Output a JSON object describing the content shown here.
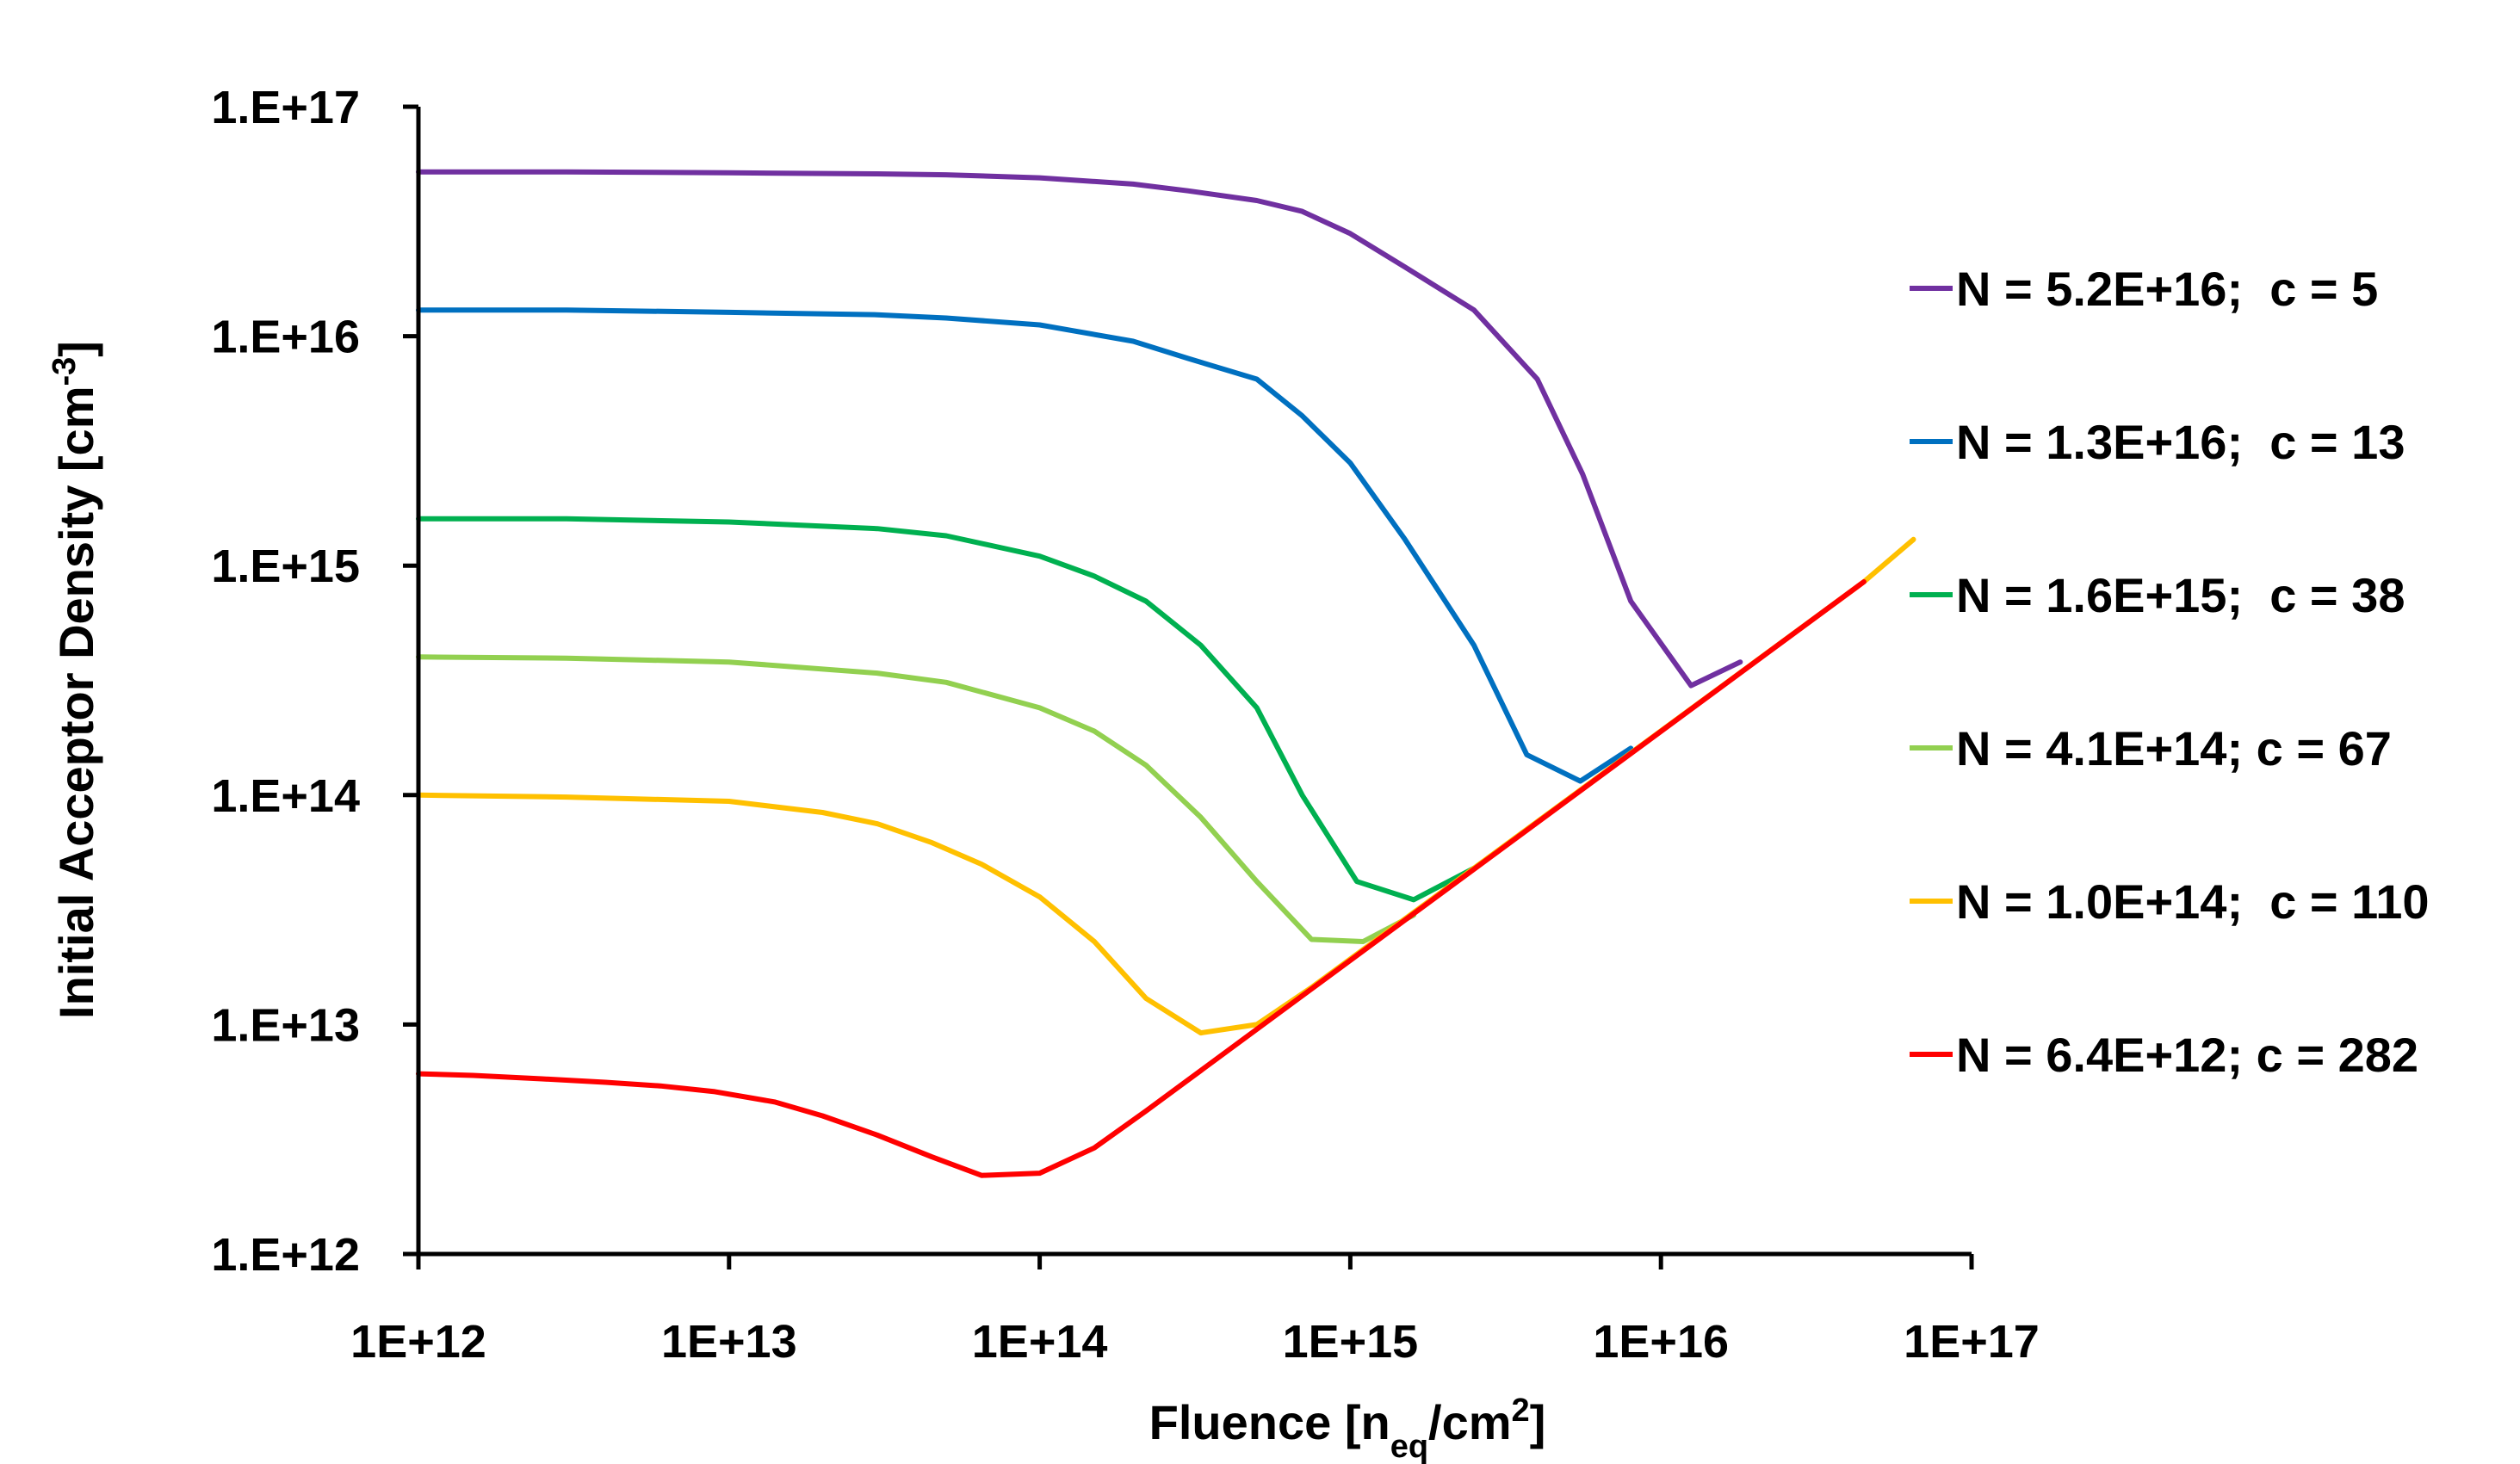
{
  "chart_data": {
    "type": "line",
    "xscale": "log",
    "yscale": "log",
    "xlim": [
      1000000000000.0,
      1e+17
    ],
    "ylim": [
      1000000000000.0,
      1e+17
    ],
    "xlabel": {
      "prefix": "Fluence [n",
      "sub": "eq",
      "mid": "/cm",
      "sup": "2",
      "suffix": "]"
    },
    "ylabel": {
      "prefix": "Initial Acceptor Density [cm",
      "sup": "-3",
      "suffix": "]"
    },
    "xticks": [
      "1E+12",
      "1E+13",
      "1E+14",
      "1E+15",
      "1E+16",
      "1E+17"
    ],
    "yticks": [
      "1.E+12",
      "1.E+13",
      "1.E+14",
      "1.E+15",
      "1.E+16",
      "1.E+17"
    ],
    "grid": false,
    "legend_position": "right",
    "series": [
      {
        "name": "N = 5.2E+16;  c = 5",
        "color": "#7030A0",
        "x": [
          1000000000000.0,
          3000000000000.0,
          10000000000000.0,
          30000000000000.0,
          50000000000000.0,
          100000000000000.0,
          200000000000000.0,
          300000000000000.0,
          500000000000000.0,
          700000000000000.0,
          1000000000000000.0,
          1500000000000000.0,
          2500000000000000.0,
          4000000000000000.0,
          5600000000000000.0,
          8000000000000000.0,
          1.25e+16,
          1.8e+16
        ],
        "y": [
          5.2e+16,
          5.2e+16,
          5.15e+16,
          5.1e+16,
          5.05e+16,
          4.9e+16,
          4.6e+16,
          4.3e+16,
          3.9e+16,
          3.5e+16,
          2.8e+16,
          2e+16,
          1.3e+16,
          6500000000000000.0,
          2500000000000000.0,
          700000000000000.0,
          300000000000000.0,
          380000000000000.0
        ]
      },
      {
        "name": "N = 1.3E+16;  c = 13",
        "color": "#0070C0",
        "x": [
          1000000000000.0,
          3000000000000.0,
          10000000000000.0,
          30000000000000.0,
          50000000000000.0,
          100000000000000.0,
          200000000000000.0,
          300000000000000.0,
          500000000000000.0,
          700000000000000.0,
          1000000000000000.0,
          1500000000000000.0,
          2500000000000000.0,
          3700000000000000.0,
          5500000000000000.0,
          8000000000000000.0
        ],
        "y": [
          1.3e+16,
          1.3e+16,
          1.27e+16,
          1.24e+16,
          1.2e+16,
          1.12e+16,
          9500000000000000.0,
          8000000000000000.0,
          6500000000000000.0,
          4500000000000000.0,
          2800000000000000.0,
          1300000000000000.0,
          450000000000000.0,
          150000000000000.0,
          115000000000000.0,
          160000000000000.0
        ]
      },
      {
        "name": "N = 1.6E+15;  c = 38",
        "color": "#00B050",
        "x": [
          1000000000000.0,
          3000000000000.0,
          10000000000000.0,
          30000000000000.0,
          50000000000000.0,
          100000000000000.0,
          150000000000000.0,
          220000000000000.0,
          330000000000000.0,
          500000000000000.0,
          700000000000000.0,
          1050000000000000.0,
          1600000000000000.0,
          2500000000000000.0
        ],
        "y": [
          1600000000000000.0,
          1600000000000000.0,
          1550000000000000.0,
          1450000000000000.0,
          1350000000000000.0,
          1100000000000000.0,
          900000000000000.0,
          700000000000000.0,
          450000000000000.0,
          240000000000000.0,
          100000000000000.0,
          42000000000000.0,
          35000000000000.0,
          48000000000000.0
        ]
      },
      {
        "name": "N = 4.1E+14; c = 67",
        "color": "#92D050",
        "x": [
          1000000000000.0,
          3000000000000.0,
          10000000000000.0,
          30000000000000.0,
          50000000000000.0,
          100000000000000.0,
          150000000000000.0,
          220000000000000.0,
          330000000000000.0,
          500000000000000.0,
          750000000000000.0,
          1100000000000000.0,
          1600000000000000.0
        ],
        "y": [
          400000000000000.0,
          395000000000000.0,
          380000000000000.0,
          340000000000000.0,
          310000000000000.0,
          240000000000000.0,
          190000000000000.0,
          135000000000000.0,
          80000000000000.0,
          42000000000000.0,
          23500000000000.0,
          23000000000000.0,
          30000000000000.0
        ]
      },
      {
        "name": "N = 1.0E+14;  c = 110",
        "color": "#FFC000",
        "x": [
          1000000000000.0,
          3000000000000.0,
          10000000000000.0,
          20000000000000.0,
          30000000000000.0,
          45000000000000.0,
          65000000000000.0,
          100000000000000.0,
          150000000000000.0,
          220000000000000.0,
          330000000000000.0,
          500000000000000.0,
          750000000000000.0,
          4.5e+16,
          6.5e+16
        ],
        "y": [
          100000000000000.0,
          98000000000000.0,
          94000000000000.0,
          84000000000000.0,
          75000000000000.0,
          62000000000000.0,
          50000000000000.0,
          36000000000000.0,
          23000000000000.0,
          13000000000000.0,
          9200000000000.0,
          10000000000000.0,
          14500000000000.0,
          850000000000000.0,
          1300000000000000.0
        ]
      },
      {
        "name": "N = 6.4E+12; c = 282",
        "color": "#FF0000",
        "x": [
          1000000000000.0,
          1500000000000.0,
          2500000000000.0,
          4000000000000.0,
          6000000000000.0,
          9000000000000.0,
          14000000000000.0,
          20000000000000.0,
          30000000000000.0,
          45000000000000.0,
          65000000000000.0,
          100000000000000.0,
          150000000000000.0,
          220000000000000.0,
          4.5e+16
        ],
        "y": [
          6100000000000.0,
          6000000000000.0,
          5800000000000.0,
          5600000000000.0,
          5400000000000.0,
          5100000000000.0,
          4600000000000.0,
          4000000000000.0,
          3300000000000.0,
          2650000000000.0,
          2200000000000.0,
          2250000000000.0,
          2900000000000.0,
          4200000000000.0,
          850000000000000.0
        ]
      }
    ]
  }
}
